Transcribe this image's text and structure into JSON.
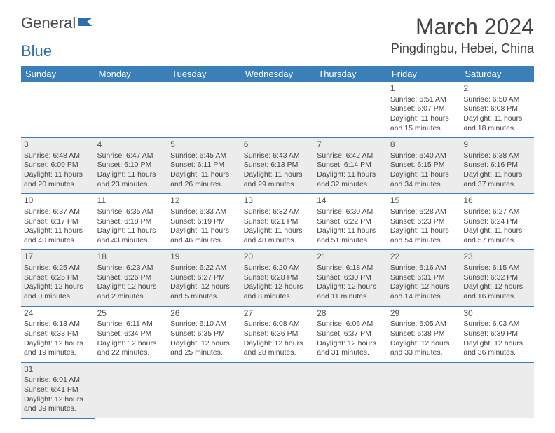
{
  "logo": {
    "text_a": "General",
    "text_b": "Blue",
    "color_a": "#5a5a5a",
    "color_b": "#2e6fa8",
    "icon_color": "#2e6fa8"
  },
  "title": "March 2024",
  "location": "Pingdingbu, Hebei, China",
  "colors": {
    "header_bg": "#3b7fb8",
    "header_text": "#ffffff",
    "row_alt_bg": "#ececec",
    "border": "#3b7fb8",
    "text": "#444444"
  },
  "weekdays": [
    "Sunday",
    "Monday",
    "Tuesday",
    "Wednesday",
    "Thursday",
    "Friday",
    "Saturday"
  ],
  "weeks": [
    [
      null,
      null,
      null,
      null,
      null,
      {
        "d": "1",
        "sr": "6:51 AM",
        "ss": "6:07 PM",
        "dl": "11 hours and 15 minutes."
      },
      {
        "d": "2",
        "sr": "6:50 AM",
        "ss": "6:08 PM",
        "dl": "11 hours and 18 minutes."
      }
    ],
    [
      {
        "d": "3",
        "sr": "6:48 AM",
        "ss": "6:09 PM",
        "dl": "11 hours and 20 minutes."
      },
      {
        "d": "4",
        "sr": "6:47 AM",
        "ss": "6:10 PM",
        "dl": "11 hours and 23 minutes."
      },
      {
        "d": "5",
        "sr": "6:45 AM",
        "ss": "6:11 PM",
        "dl": "11 hours and 26 minutes."
      },
      {
        "d": "6",
        "sr": "6:43 AM",
        "ss": "6:13 PM",
        "dl": "11 hours and 29 minutes."
      },
      {
        "d": "7",
        "sr": "6:42 AM",
        "ss": "6:14 PM",
        "dl": "11 hours and 32 minutes."
      },
      {
        "d": "8",
        "sr": "6:40 AM",
        "ss": "6:15 PM",
        "dl": "11 hours and 34 minutes."
      },
      {
        "d": "9",
        "sr": "6:38 AM",
        "ss": "6:16 PM",
        "dl": "11 hours and 37 minutes."
      }
    ],
    [
      {
        "d": "10",
        "sr": "6:37 AM",
        "ss": "6:17 PM",
        "dl": "11 hours and 40 minutes."
      },
      {
        "d": "11",
        "sr": "6:35 AM",
        "ss": "6:18 PM",
        "dl": "11 hours and 43 minutes."
      },
      {
        "d": "12",
        "sr": "6:33 AM",
        "ss": "6:19 PM",
        "dl": "11 hours and 46 minutes."
      },
      {
        "d": "13",
        "sr": "6:32 AM",
        "ss": "6:21 PM",
        "dl": "11 hours and 48 minutes."
      },
      {
        "d": "14",
        "sr": "6:30 AM",
        "ss": "6:22 PM",
        "dl": "11 hours and 51 minutes."
      },
      {
        "d": "15",
        "sr": "6:28 AM",
        "ss": "6:23 PM",
        "dl": "11 hours and 54 minutes."
      },
      {
        "d": "16",
        "sr": "6:27 AM",
        "ss": "6:24 PM",
        "dl": "11 hours and 57 minutes."
      }
    ],
    [
      {
        "d": "17",
        "sr": "6:25 AM",
        "ss": "6:25 PM",
        "dl": "12 hours and 0 minutes."
      },
      {
        "d": "18",
        "sr": "6:23 AM",
        "ss": "6:26 PM",
        "dl": "12 hours and 2 minutes."
      },
      {
        "d": "19",
        "sr": "6:22 AM",
        "ss": "6:27 PM",
        "dl": "12 hours and 5 minutes."
      },
      {
        "d": "20",
        "sr": "6:20 AM",
        "ss": "6:28 PM",
        "dl": "12 hours and 8 minutes."
      },
      {
        "d": "21",
        "sr": "6:18 AM",
        "ss": "6:30 PM",
        "dl": "12 hours and 11 minutes."
      },
      {
        "d": "22",
        "sr": "6:16 AM",
        "ss": "6:31 PM",
        "dl": "12 hours and 14 minutes."
      },
      {
        "d": "23",
        "sr": "6:15 AM",
        "ss": "6:32 PM",
        "dl": "12 hours and 16 minutes."
      }
    ],
    [
      {
        "d": "24",
        "sr": "6:13 AM",
        "ss": "6:33 PM",
        "dl": "12 hours and 19 minutes."
      },
      {
        "d": "25",
        "sr": "6:11 AM",
        "ss": "6:34 PM",
        "dl": "12 hours and 22 minutes."
      },
      {
        "d": "26",
        "sr": "6:10 AM",
        "ss": "6:35 PM",
        "dl": "12 hours and 25 minutes."
      },
      {
        "d": "27",
        "sr": "6:08 AM",
        "ss": "6:36 PM",
        "dl": "12 hours and 28 minutes."
      },
      {
        "d": "28",
        "sr": "6:06 AM",
        "ss": "6:37 PM",
        "dl": "12 hours and 31 minutes."
      },
      {
        "d": "29",
        "sr": "6:05 AM",
        "ss": "6:38 PM",
        "dl": "12 hours and 33 minutes."
      },
      {
        "d": "30",
        "sr": "6:03 AM",
        "ss": "6:39 PM",
        "dl": "12 hours and 36 minutes."
      }
    ],
    [
      {
        "d": "31",
        "sr": "6:01 AM",
        "ss": "6:41 PM",
        "dl": "12 hours and 39 minutes."
      },
      null,
      null,
      null,
      null,
      null,
      null
    ]
  ],
  "labels": {
    "sunrise": "Sunrise:",
    "sunset": "Sunset:",
    "daylight": "Daylight:"
  }
}
